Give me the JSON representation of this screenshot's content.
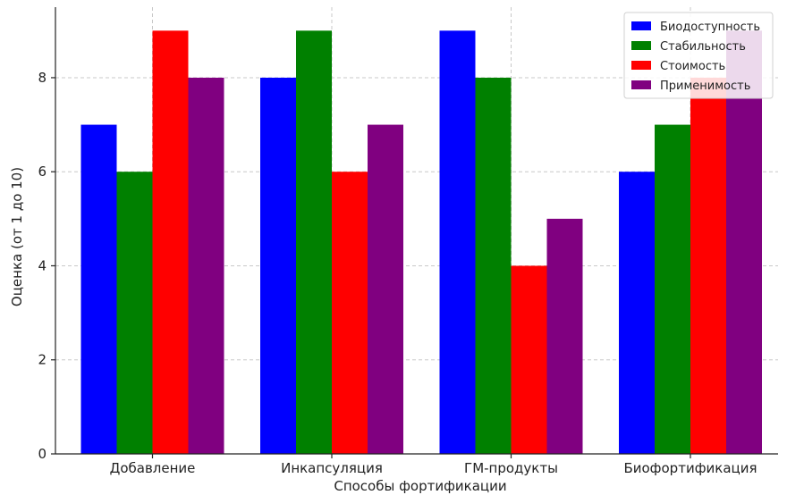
{
  "chart_data": {
    "type": "bar",
    "title": "",
    "xlabel": "Способы фортификации",
    "ylabel": "Оценка (от 1 до 10)",
    "categories": [
      "Добавление",
      "Инкапсуляция",
      "ГМ-продукты",
      "Биофортификация"
    ],
    "series": [
      {
        "name": "Биодоступность",
        "color": "#0000ff",
        "values": [
          7,
          8,
          9,
          6
        ]
      },
      {
        "name": "Стабильность",
        "color": "#008000",
        "values": [
          6,
          9,
          8,
          7
        ]
      },
      {
        "name": "Стоимость",
        "color": "#ff0000",
        "values": [
          9,
          6,
          4,
          8
        ]
      },
      {
        "name": "Применимость",
        "color": "#800080",
        "values": [
          8,
          7,
          5,
          9
        ]
      }
    ],
    "ylim": [
      0,
      9.5
    ],
    "yticks": [
      0,
      2,
      4,
      6,
      8
    ],
    "grid": true,
    "legend_position": "top-right"
  }
}
